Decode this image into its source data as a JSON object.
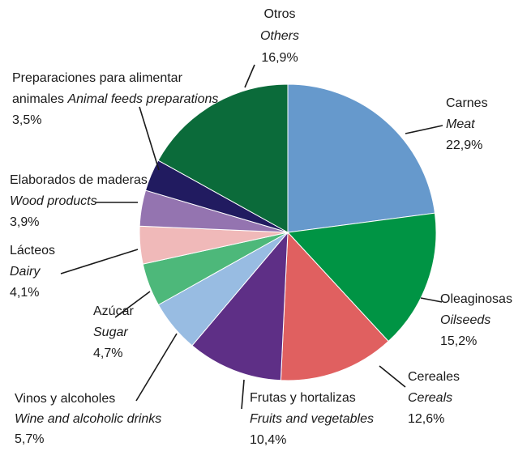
{
  "chart_data": {
    "type": "pie",
    "categories": [
      "Carnes",
      "Oleaginosas",
      "Cereales",
      "Frutas y hortalizas",
      "Vinos y alcoholes",
      "Azúcar",
      "Lácteos",
      "Elaborados de maderas",
      "Preparaciones para alimentar animales",
      "Otros"
    ],
    "categories_en": [
      "Meat",
      "Oilseeds",
      "Cereals",
      "Fruits and vegetables",
      "Wine and alcoholic drinks",
      "Sugar",
      "Dairy",
      "Wood products",
      "Animal feeds preparations",
      "Others"
    ],
    "values": [
      22.9,
      15.2,
      12.6,
      10.4,
      5.7,
      4.7,
      4.1,
      3.9,
      3.5,
      16.9
    ],
    "value_labels": [
      "22,9%",
      "15,2%",
      "12,6%",
      "10,4%",
      "5,7%",
      "4,7%",
      "4,1%",
      "3,9%",
      "3,5%",
      "16,9%"
    ],
    "colors": [
      "#6699cc",
      "#009444",
      "#e06060",
      "#5e2f86",
      "#98bce2",
      "#4db87a",
      "#f0b9b9",
      "#9474b0",
      "#211b60",
      "#0b6b3a"
    ]
  }
}
